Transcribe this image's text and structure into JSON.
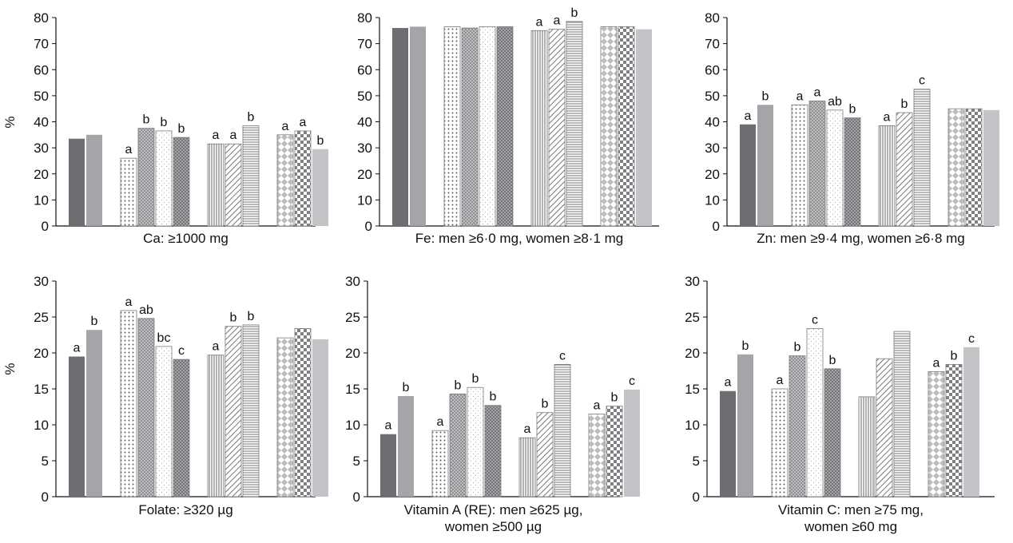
{
  "colors": {
    "dark": "#6e6e72",
    "medium": "#a5a5a9",
    "light": "#c4c4c8",
    "axis": "#111111",
    "bar_edge": "#7a7a7a"
  },
  "chart_data": [
    {
      "type": "bar",
      "panel": "Ca",
      "caption": [
        "Ca: ≥1000 mg"
      ],
      "ylabel": "%",
      "ylim": [
        0,
        80
      ],
      "yticks": [
        0,
        10,
        20,
        30,
        40,
        50,
        60,
        70,
        80
      ],
      "groups": [
        {
          "bars": [
            {
              "value": 33.5,
              "pattern": "dark"
            },
            {
              "value": 35.0,
              "pattern": "medium"
            }
          ]
        },
        {
          "bars": [
            {
              "value": 26.0,
              "pattern": "dots",
              "label": "a"
            },
            {
              "value": 37.5,
              "pattern": "dense-dots",
              "label": "b"
            },
            {
              "value": 36.5,
              "pattern": "fine-dots",
              "label": "b"
            },
            {
              "value": 34.0,
              "pattern": "cross",
              "label": "b"
            }
          ]
        },
        {
          "bars": [
            {
              "value": 31.5,
              "pattern": "vlines",
              "label": "a"
            },
            {
              "value": 31.5,
              "pattern": "diag",
              "label": "a"
            },
            {
              "value": 38.5,
              "pattern": "hlines",
              "label": "b"
            }
          ]
        },
        {
          "bars": [
            {
              "value": 35.0,
              "pattern": "diamond",
              "label": "a"
            },
            {
              "value": 36.5,
              "pattern": "checker",
              "label": "a"
            },
            {
              "value": 29.5,
              "pattern": "light",
              "label": "b"
            }
          ]
        }
      ]
    },
    {
      "type": "bar",
      "panel": "Fe",
      "caption": [
        "Fe: men ≥6·0 mg, women ≥8·1 mg"
      ],
      "ylim": [
        0,
        80
      ],
      "yticks": [
        0,
        10,
        20,
        30,
        40,
        50,
        60,
        70,
        80
      ],
      "groups": [
        {
          "bars": [
            {
              "value": 76.0,
              "pattern": "dark"
            },
            {
              "value": 76.5,
              "pattern": "medium"
            }
          ]
        },
        {
          "bars": [
            {
              "value": 76.5,
              "pattern": "dots"
            },
            {
              "value": 76.0,
              "pattern": "dense-dots"
            },
            {
              "value": 76.5,
              "pattern": "fine-dots"
            },
            {
              "value": 76.5,
              "pattern": "cross"
            }
          ]
        },
        {
          "bars": [
            {
              "value": 75.0,
              "pattern": "vlines",
              "label": "a"
            },
            {
              "value": 75.5,
              "pattern": "diag",
              "label": "a"
            },
            {
              "value": 78.5,
              "pattern": "hlines",
              "label": "b"
            }
          ]
        },
        {
          "bars": [
            {
              "value": 76.5,
              "pattern": "diamond"
            },
            {
              "value": 76.5,
              "pattern": "checker"
            },
            {
              "value": 75.5,
              "pattern": "light"
            }
          ]
        }
      ]
    },
    {
      "type": "bar",
      "panel": "Zn",
      "caption": [
        "Zn: men ≥9·4 mg, women ≥6·8 mg"
      ],
      "ylim": [
        0,
        80
      ],
      "yticks": [
        0,
        10,
        20,
        30,
        40,
        50,
        60,
        70,
        80
      ],
      "groups": [
        {
          "bars": [
            {
              "value": 39.0,
              "pattern": "dark",
              "label": "a"
            },
            {
              "value": 46.5,
              "pattern": "medium",
              "label": "b"
            }
          ]
        },
        {
          "bars": [
            {
              "value": 46.5,
              "pattern": "dots",
              "label": "a"
            },
            {
              "value": 48.0,
              "pattern": "dense-dots",
              "label": "a"
            },
            {
              "value": 44.5,
              "pattern": "fine-dots",
              "label": "ab"
            },
            {
              "value": 41.5,
              "pattern": "cross",
              "label": "b"
            }
          ]
        },
        {
          "bars": [
            {
              "value": 38.5,
              "pattern": "vlines",
              "label": "a"
            },
            {
              "value": 43.5,
              "pattern": "diag",
              "label": "b"
            },
            {
              "value": 52.5,
              "pattern": "hlines",
              "label": "c"
            }
          ]
        },
        {
          "bars": [
            {
              "value": 45.0,
              "pattern": "diamond"
            },
            {
              "value": 45.0,
              "pattern": "checker"
            },
            {
              "value": 44.5,
              "pattern": "light"
            }
          ]
        }
      ]
    },
    {
      "type": "bar",
      "panel": "Folate",
      "caption": [
        "Folate: ≥320 µg"
      ],
      "ylabel": "%",
      "ylim": [
        0,
        30
      ],
      "yticks": [
        0,
        5,
        10,
        15,
        20,
        25,
        30
      ],
      "groups": [
        {
          "bars": [
            {
              "value": 19.5,
              "pattern": "dark",
              "label": "a"
            },
            {
              "value": 23.2,
              "pattern": "medium",
              "label": "b"
            }
          ]
        },
        {
          "bars": [
            {
              "value": 25.9,
              "pattern": "dots",
              "label": "a"
            },
            {
              "value": 24.8,
              "pattern": "dense-dots",
              "label": "ab"
            },
            {
              "value": 20.9,
              "pattern": "fine-dots",
              "label": "bc"
            },
            {
              "value": 19.1,
              "pattern": "cross",
              "label": "c"
            }
          ]
        },
        {
          "bars": [
            {
              "value": 19.7,
              "pattern": "vlines",
              "label": "a"
            },
            {
              "value": 23.7,
              "pattern": "diag",
              "label": "b"
            },
            {
              "value": 23.9,
              "pattern": "hlines",
              "label": "b"
            }
          ]
        },
        {
          "bars": [
            {
              "value": 22.1,
              "pattern": "diamond"
            },
            {
              "value": 23.4,
              "pattern": "checker"
            },
            {
              "value": 21.9,
              "pattern": "light"
            }
          ]
        }
      ]
    },
    {
      "type": "bar",
      "panel": "Vitamin A",
      "caption": [
        "Vitamin A (RE): men ≥625 µg,",
        "women ≥500 µg"
      ],
      "ylim": [
        0,
        30
      ],
      "yticks": [
        0,
        5,
        10,
        15,
        20,
        25,
        30
      ],
      "groups": [
        {
          "bars": [
            {
              "value": 8.7,
              "pattern": "dark",
              "label": "a"
            },
            {
              "value": 14.0,
              "pattern": "medium",
              "label": "b"
            }
          ]
        },
        {
          "bars": [
            {
              "value": 9.2,
              "pattern": "dots",
              "label": "a"
            },
            {
              "value": 14.3,
              "pattern": "dense-dots",
              "label": "b"
            },
            {
              "value": 15.2,
              "pattern": "fine-dots",
              "label": "b"
            },
            {
              "value": 12.7,
              "pattern": "cross",
              "label": "b"
            }
          ]
        },
        {
          "bars": [
            {
              "value": 8.2,
              "pattern": "vlines",
              "label": "a"
            },
            {
              "value": 11.7,
              "pattern": "diag",
              "label": "b"
            },
            {
              "value": 18.4,
              "pattern": "hlines",
              "label": "c"
            }
          ]
        },
        {
          "bars": [
            {
              "value": 11.5,
              "pattern": "diamond",
              "label": "a"
            },
            {
              "value": 12.6,
              "pattern": "checker",
              "label": "b"
            },
            {
              "value": 14.9,
              "pattern": "light",
              "label": "c"
            }
          ]
        }
      ]
    },
    {
      "type": "bar",
      "panel": "Vitamin C",
      "caption": [
        "Vitamin C: men ≥75 mg,",
        "women ≥60 mg"
      ],
      "ylim": [
        0,
        30
      ],
      "yticks": [
        0,
        5,
        10,
        15,
        20,
        25,
        30
      ],
      "groups": [
        {
          "bars": [
            {
              "value": 14.7,
              "pattern": "dark",
              "label": "a"
            },
            {
              "value": 19.8,
              "pattern": "medium",
              "label": "b"
            }
          ]
        },
        {
          "bars": [
            {
              "value": 15.0,
              "pattern": "dots",
              "label": "a"
            },
            {
              "value": 19.6,
              "pattern": "dense-dots",
              "label": "b"
            },
            {
              "value": 23.4,
              "pattern": "fine-dots",
              "label": "c"
            },
            {
              "value": 17.8,
              "pattern": "cross",
              "label": "b"
            }
          ]
        },
        {
          "bars": [
            {
              "value": 13.9,
              "pattern": "vlines"
            },
            {
              "value": 19.2,
              "pattern": "diag"
            },
            {
              "value": 23.0,
              "pattern": "hlines"
            }
          ]
        },
        {
          "bars": [
            {
              "value": 17.4,
              "pattern": "diamond",
              "label": "a"
            },
            {
              "value": 18.4,
              "pattern": "checker",
              "label": "b"
            },
            {
              "value": 20.8,
              "pattern": "light",
              "label": "c"
            }
          ]
        }
      ]
    }
  ]
}
